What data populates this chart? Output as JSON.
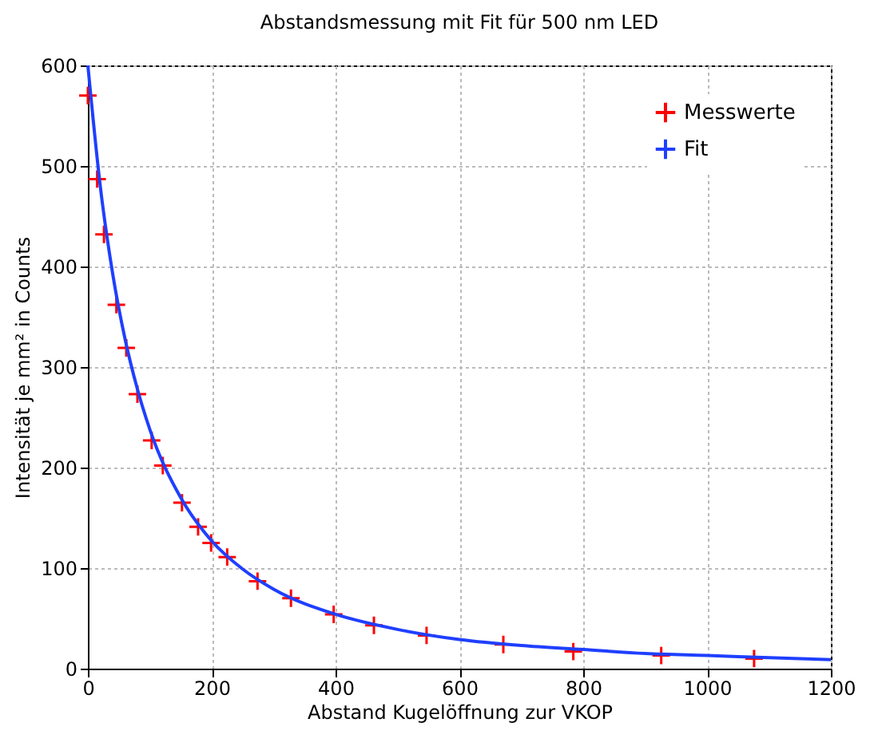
{
  "chart_data": {
    "type": "scatter",
    "title": "Abstandsmessung mit Fit für 500 nm LED",
    "xlabel": "Abstand Kugelöffnung zur VKOP",
    "ylabel": "Intensität je mm² in Counts",
    "xlim": [
      0,
      1200
    ],
    "xticks": [
      0,
      200,
      400,
      600,
      800,
      1000,
      1200
    ],
    "ylim": [
      0,
      600
    ],
    "yticks": [
      0,
      100,
      200,
      300,
      400,
      500,
      600
    ],
    "grid": true,
    "legend": "top right",
    "series": [
      {
        "name": "Messwerte",
        "type": "scatter",
        "marker": "cross",
        "color": "#ff0000",
        "x": [
          0,
          15,
          26,
          46,
          62,
          80,
          103,
          121,
          152,
          178,
          199,
          225,
          274,
          328,
          397,
          462,
          547,
          671,
          784,
          926,
          1076
        ],
        "values": [
          570,
          487,
          432,
          362,
          319,
          273,
          227,
          202,
          165,
          141,
          125,
          111,
          87,
          70,
          54,
          43,
          33,
          24,
          17,
          13,
          10
        ]
      },
      {
        "name": "Fit",
        "type": "line",
        "color": "#1f3fff",
        "line_style": "solid",
        "x": [
          0,
          20,
          40,
          60,
          80,
          100,
          150,
          200,
          250,
          300,
          400,
          500,
          600,
          700,
          800,
          900,
          1000,
          1100,
          1200
        ],
        "values": [
          600,
          480,
          393,
          328,
          278,
          238,
          170,
          127,
          99,
          79,
          54,
          39,
          29,
          23,
          19,
          15,
          13,
          11,
          9
        ]
      }
    ]
  }
}
